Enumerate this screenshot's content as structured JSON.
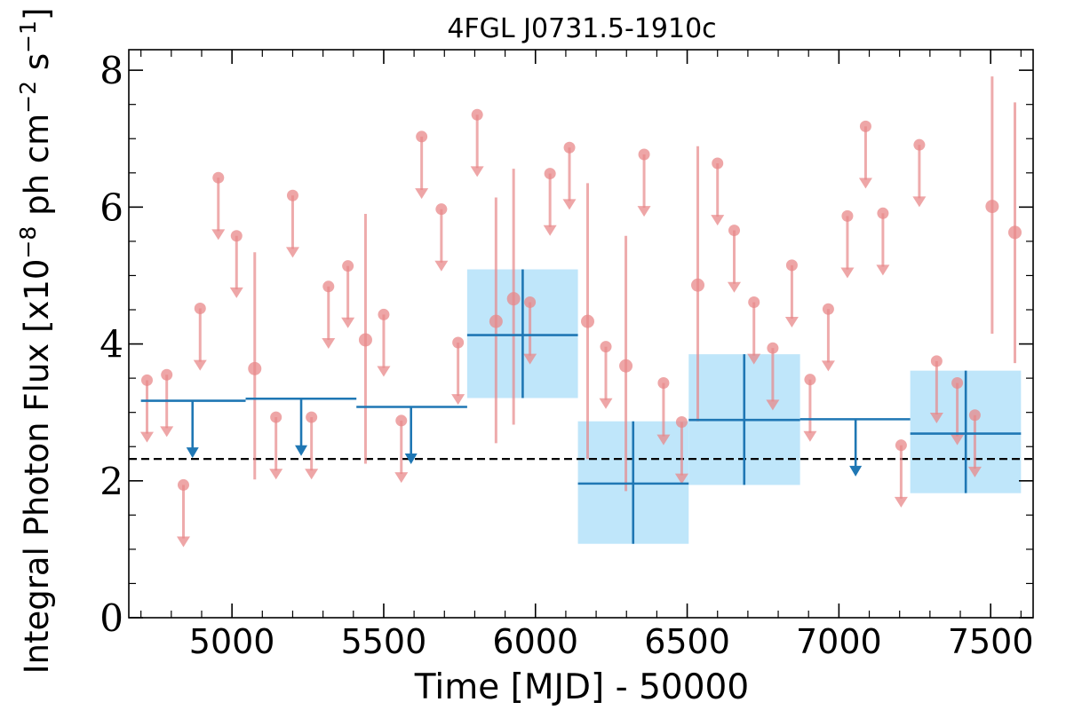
{
  "chart_data": {
    "type": "scatter",
    "title": "4FGL J0731.5-1910c",
    "xlabel": "Time [MJD] - 50000",
    "ylabel": "Integral Photon Flux [x10",
    "ylabel_exp1": "−8",
    "ylabel_mid": " ph cm",
    "ylabel_exp2": "−2",
    "ylabel_mid2": " s",
    "ylabel_exp3": "−1",
    "ylabel_end": "]",
    "xlim": [
      4660,
      7640
    ],
    "ylim": [
      0,
      8.3
    ],
    "x_ticks": [
      5000,
      5500,
      6000,
      6500,
      7000,
      7500
    ],
    "y_ticks": [
      0,
      2,
      4,
      6,
      8
    ],
    "x_tick_labels": [
      "5000",
      "5500",
      "6000",
      "6500",
      "7000",
      "7500"
    ],
    "y_tick_labels": [
      "0",
      "2",
      "4",
      "6",
      "8"
    ],
    "reference_line": 2.32,
    "colors": {
      "short_bins": "#e8888a",
      "long_bins": "#1f77b4",
      "long_bin_band": "#bfe6fa",
      "reference": "#000000"
    },
    "short_bins_upper_limits": [
      {
        "x": 4720,
        "y": 3.47
      },
      {
        "x": 4785,
        "y": 3.55
      },
      {
        "x": 4895,
        "y": 4.52
      },
      {
        "x": 4955,
        "y": 6.43
      },
      {
        "x": 5015,
        "y": 5.58
      },
      {
        "x": 5145,
        "y": 2.93
      },
      {
        "x": 5200,
        "y": 6.17
      },
      {
        "x": 5262,
        "y": 2.93
      },
      {
        "x": 5318,
        "y": 4.84
      },
      {
        "x": 5382,
        "y": 5.14
      },
      {
        "x": 5500,
        "y": 4.43
      },
      {
        "x": 5558,
        "y": 2.88
      },
      {
        "x": 5625,
        "y": 7.03
      },
      {
        "x": 5690,
        "y": 5.97
      },
      {
        "x": 5745,
        "y": 4.02
      },
      {
        "x": 5808,
        "y": 7.35
      },
      {
        "x": 5982,
        "y": 4.61
      },
      {
        "x": 6048,
        "y": 6.49
      },
      {
        "x": 6112,
        "y": 6.87
      },
      {
        "x": 6232,
        "y": 3.96
      },
      {
        "x": 6358,
        "y": 6.77
      },
      {
        "x": 6422,
        "y": 3.43
      },
      {
        "x": 6482,
        "y": 2.86
      },
      {
        "x": 6600,
        "y": 6.64
      },
      {
        "x": 6655,
        "y": 5.66
      },
      {
        "x": 6720,
        "y": 4.61
      },
      {
        "x": 6782,
        "y": 3.94
      },
      {
        "x": 6845,
        "y": 5.15
      },
      {
        "x": 6905,
        "y": 3.48
      },
      {
        "x": 6965,
        "y": 4.51
      },
      {
        "x": 7028,
        "y": 5.87
      },
      {
        "x": 7088,
        "y": 7.18
      },
      {
        "x": 7145,
        "y": 5.91
      },
      {
        "x": 7265,
        "y": 6.91
      },
      {
        "x": 7322,
        "y": 3.75
      },
      {
        "x": 7390,
        "y": 3.43
      },
      {
        "x": 7205,
        "y": 2.52
      },
      {
        "x": 4840,
        "y": 1.94
      },
      {
        "x": 7448,
        "y": 2.96
      }
    ],
    "short_bins_detections": [
      {
        "x": 5075,
        "y": 3.64,
        "ylo": 2.02,
        "yhi": 5.34
      },
      {
        "x": 5440,
        "y": 4.06,
        "ylo": 2.25,
        "yhi": 5.9
      },
      {
        "x": 5870,
        "y": 4.33,
        "ylo": 2.55,
        "yhi": 6.14
      },
      {
        "x": 5928,
        "y": 4.66,
        "ylo": 2.82,
        "yhi": 6.56
      },
      {
        "x": 6172,
        "y": 4.33,
        "ylo": 2.32,
        "yhi": 6.35
      },
      {
        "x": 6298,
        "y": 3.68,
        "ylo": 1.85,
        "yhi": 5.58
      },
      {
        "x": 6535,
        "y": 4.86,
        "ylo": 2.87,
        "yhi": 6.89
      },
      {
        "x": 7505,
        "y": 6.01,
        "ylo": 4.15,
        "yhi": 7.91
      },
      {
        "x": 7580,
        "y": 5.63,
        "ylo": 3.72,
        "yhi": 7.53
      }
    ],
    "long_bins_upper_limits": [
      {
        "x0": 4700,
        "x1": 5045,
        "xmark": 4870,
        "y": 3.17
      },
      {
        "x0": 5045,
        "x1": 5410,
        "xmark": 5228,
        "y": 3.2
      },
      {
        "x0": 5410,
        "x1": 5775,
        "xmark": 5590,
        "y": 3.08
      },
      {
        "x0": 6872,
        "x1": 7235,
        "xmark": 7055,
        "y": 2.9
      }
    ],
    "long_bins_detections": [
      {
        "x0": 5775,
        "x1": 6140,
        "xc": 5958,
        "y": 4.13,
        "ylo": 3.21,
        "yhi": 5.09
      },
      {
        "x0": 6140,
        "x1": 6505,
        "xc": 6322,
        "y": 1.96,
        "ylo": 1.08,
        "yhi": 2.87
      },
      {
        "x0": 6505,
        "x1": 6872,
        "xc": 6688,
        "y": 2.89,
        "ylo": 1.94,
        "yhi": 3.85
      },
      {
        "x0": 7235,
        "x1": 7600,
        "xc": 7418,
        "y": 2.69,
        "ylo": 1.82,
        "yhi": 3.61
      }
    ]
  }
}
